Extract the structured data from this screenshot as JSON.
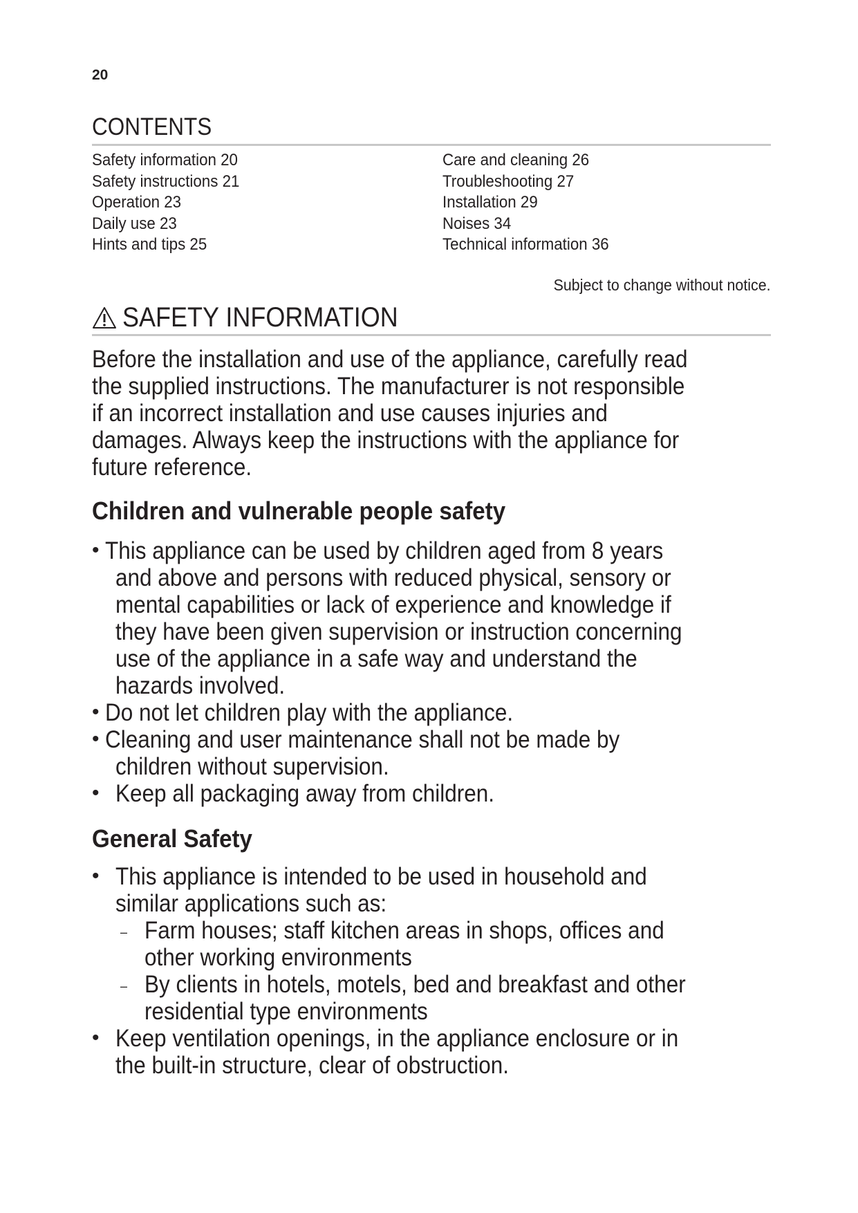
{
  "page_number": "20",
  "contents": {
    "title": "CONTENTS",
    "left": [
      "Safety information 20",
      "Safety instructions 21",
      "Operation 23",
      "Daily use 23",
      "Hints and tips 25"
    ],
    "right": [
      "Care and cleaning 26",
      "Troubleshooting 27",
      "Installation 29",
      "Noises 34",
      "Technical information 36"
    ]
  },
  "notice": "Subject to change without notice.",
  "safety": {
    "icon": "warning-triangle-icon",
    "title": "SAFETY INFORMATION",
    "intro": [
      "Before the installation and use of the appliance, carefully read",
      "the supplied instructions. The manufacturer is not responsible",
      "if an incorrect installation and use causes injuries and",
      "damages. Always keep the instructions with the appliance for",
      "future reference."
    ],
    "children_heading": "Children and vulnerable people safety",
    "children_items": [
      [
        "This appliance can be used by children aged from 8 years",
        "and above and persons with reduced physical, sensory or",
        "mental capabilities or lack of experience and knowledge if",
        "they have been given supervision or instruction concerning",
        "use of the appliance in a safe way and understand the",
        "hazards involved."
      ],
      [
        "Do not let children play with the appliance."
      ],
      [
        "Cleaning and user maintenance shall not be made by",
        "children without supervision."
      ],
      [
        "Keep all packaging away from children."
      ]
    ],
    "general_heading": "General Safety",
    "general_item1": [
      "This appliance is intended to be used in household and",
      "similar applications such as:"
    ],
    "general_subitems": [
      [
        "Farm houses; staff kitchen areas in shops, offices and",
        "other working environments"
      ],
      [
        "By clients in hotels, motels, bed and breakfast and other",
        "residential type environments"
      ]
    ],
    "general_item2": [
      "Keep ventilation openings, in the appliance enclosure or in",
      "the built-in structure, clear of obstruction."
    ]
  }
}
